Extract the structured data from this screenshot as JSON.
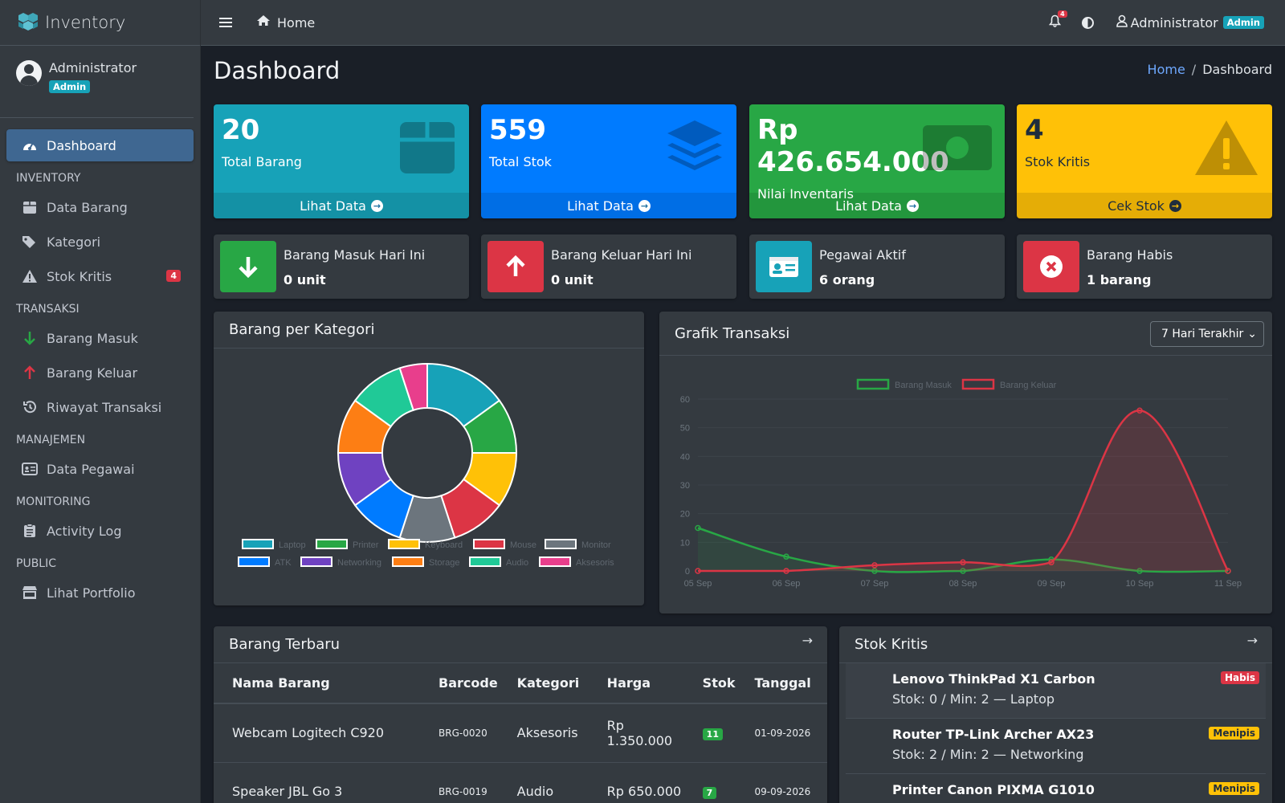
{
  "app": {
    "brand": "Inventory"
  },
  "sidebar": {
    "user": {
      "name": "Administrator",
      "role": "Admin"
    },
    "items": [
      {
        "label": "Dashboard"
      },
      {
        "header": "INVENTORY"
      },
      {
        "label": "Data Barang"
      },
      {
        "label": "Kategori"
      },
      {
        "label": "Stok Kritis",
        "badge": "4"
      },
      {
        "header": "TRANSAKSI"
      },
      {
        "label": "Barang Masuk"
      },
      {
        "label": "Barang Keluar"
      },
      {
        "label": "Riwayat Transaksi"
      },
      {
        "header": "MANAJEMEN"
      },
      {
        "label": "Data Pegawai"
      },
      {
        "header": "MONITORING"
      },
      {
        "label": "Activity Log"
      },
      {
        "header": "PUBLIC"
      },
      {
        "label": "Lihat Portfolio"
      }
    ]
  },
  "topbar": {
    "home": "Home",
    "notif_count": "4",
    "user": "Administrator",
    "role": "Admin"
  },
  "page": {
    "title": "Dashboard",
    "breadcrumb": {
      "home": "Home",
      "sep": "/",
      "current": "Dashboard"
    }
  },
  "stats": [
    {
      "value": "20",
      "label": "Total Barang",
      "link": "Lihat Data"
    },
    {
      "value": "559",
      "label": "Total Stok",
      "link": "Lihat Data"
    },
    {
      "value": "Rp 426.654.000",
      "label": "Nilai Inventaris",
      "link": "Lihat Data"
    },
    {
      "value": "4",
      "label": "Stok Kritis",
      "link": "Cek Stok"
    }
  ],
  "info": [
    {
      "label": "Barang Masuk Hari Ini",
      "value": "0 unit"
    },
    {
      "label": "Barang Keluar Hari Ini",
      "value": "0 unit"
    },
    {
      "label": "Pegawai Aktif",
      "value": "6 orang"
    },
    {
      "label": "Barang Habis",
      "value": "1 barang"
    }
  ],
  "donut_card": {
    "title": "Barang per Kategori"
  },
  "line_card": {
    "title": "Grafik Transaksi",
    "range": "7 Hari Terakhir"
  },
  "chart_data": [
    {
      "type": "pie",
      "categories": [
        "Laptop",
        "Printer",
        "Keyboard",
        "Mouse",
        "Monitor",
        "ATK",
        "Networking",
        "Storage",
        "Audio",
        "Aksesoris"
      ],
      "values": [
        3,
        2,
        2,
        2,
        2,
        2,
        2,
        2,
        2,
        1
      ],
      "colors": [
        "#17a2b8",
        "#28a745",
        "#ffc107",
        "#dc3545",
        "#6c757d",
        "#007bff",
        "#6f42c1",
        "#fd7e14",
        "#20c997",
        "#e83e8c"
      ],
      "legend": "bottom"
    },
    {
      "type": "line",
      "x": [
        "05 Sep",
        "06 Sep",
        "07 Sep",
        "08 Sep",
        "09 Sep",
        "10 Sep",
        "11 Sep"
      ],
      "series": [
        {
          "name": "Barang Masuk",
          "values": [
            15,
            5,
            0,
            0,
            4,
            0,
            0
          ],
          "color": "#28a745"
        },
        {
          "name": "Barang Keluar",
          "values": [
            0,
            0,
            2,
            3,
            3,
            56,
            0
          ],
          "color": "#dc3545"
        }
      ],
      "ylim": [
        0,
        60
      ],
      "yticks": [
        0,
        10,
        20,
        30,
        40,
        50,
        60
      ],
      "legend": "top"
    }
  ],
  "latest": {
    "title": "Barang Terbaru",
    "columns": [
      "Nama Barang",
      "Barcode",
      "Kategori",
      "Harga",
      "Stok",
      "Tanggal"
    ],
    "rows": [
      {
        "name": "Webcam Logitech C920",
        "barcode": "BRG-0020",
        "category": "Aksesoris",
        "price": "Rp 1.350.000",
        "stock": "11",
        "date": "01-09-2026"
      },
      {
        "name": "Speaker JBL Go 3",
        "barcode": "BRG-0019",
        "category": "Audio",
        "price": "Rp 650.000",
        "stock": "7",
        "date": "09-09-2026"
      }
    ]
  },
  "critical": {
    "title": "Stok Kritis",
    "items": [
      {
        "name": "Lenovo ThinkPad X1 Carbon",
        "meta": "Stok: 0 / Min: 2 — Laptop",
        "status": "Habis",
        "color": "#dc3545"
      },
      {
        "name": "Router TP-Link Archer AX23",
        "meta": "Stok: 2 / Min: 2 — Networking",
        "status": "Menipis",
        "color": "#ffc107"
      },
      {
        "name": "Printer Canon PIXMA G1010",
        "meta": "",
        "status": "Menipis",
        "color": "#ffc107"
      }
    ]
  }
}
